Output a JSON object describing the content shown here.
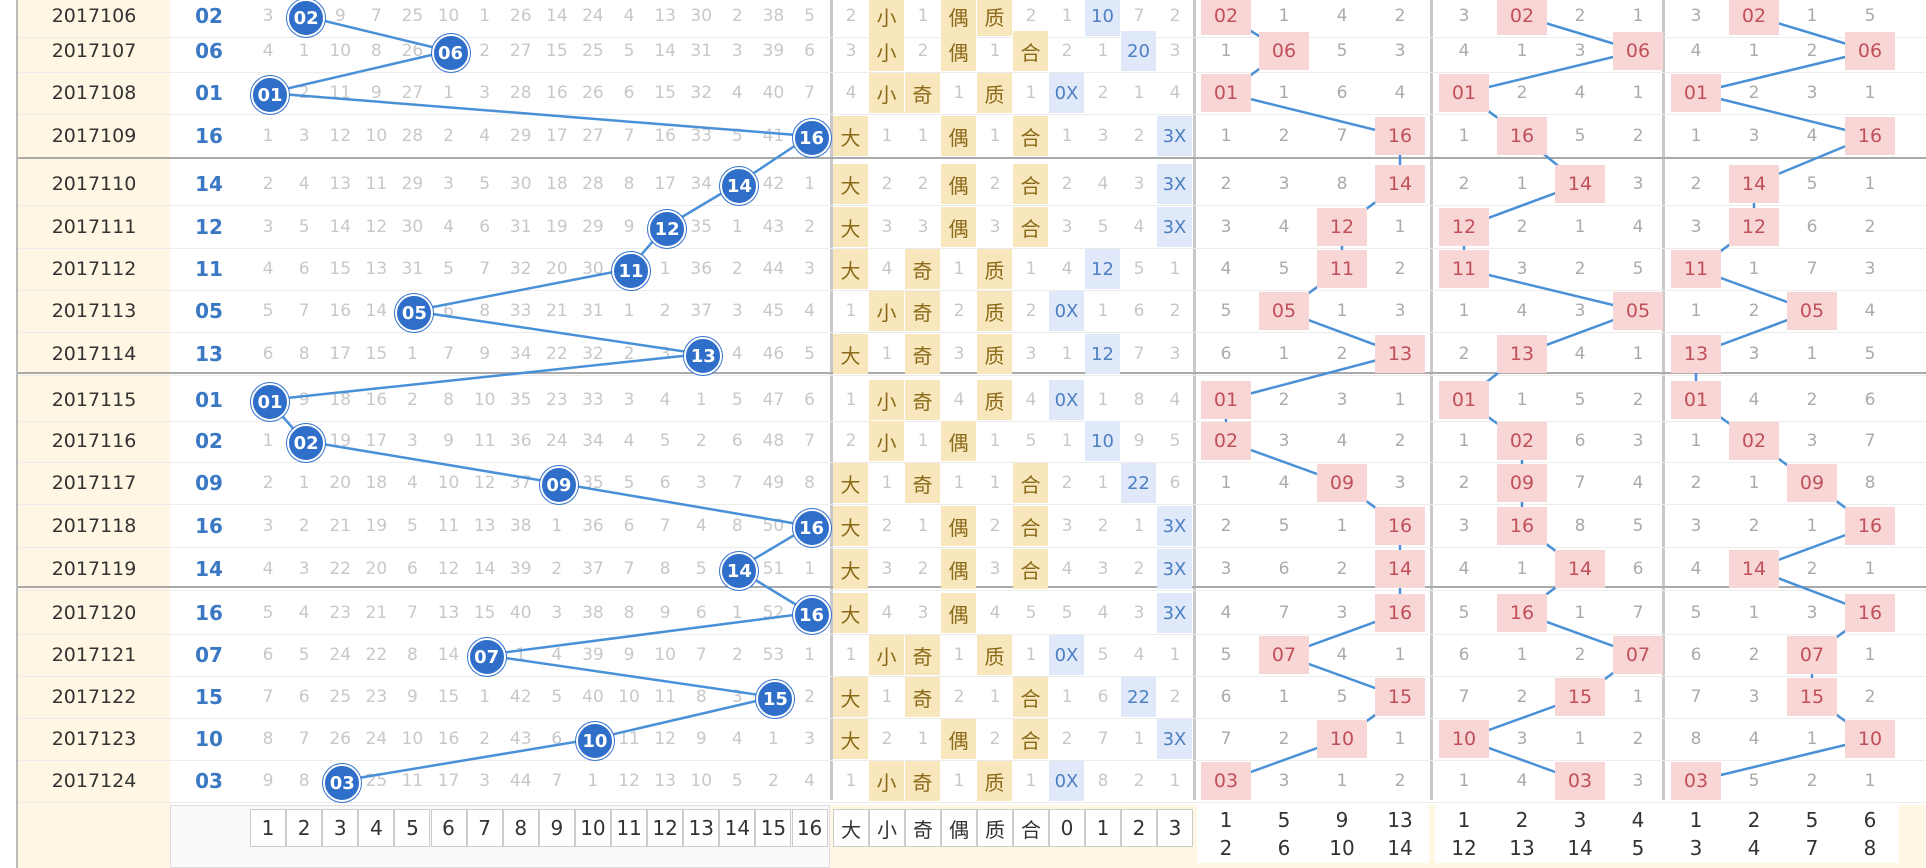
{
  "chart_data": {
    "type": "table",
    "issues": [
      "2017106",
      "2017107",
      "2017108",
      "2017109",
      "2017110",
      "2017111",
      "2017112",
      "2017113",
      "2017114",
      "2017115",
      "2017116",
      "2017117",
      "2017118",
      "2017119",
      "2017120",
      "2017121",
      "2017122",
      "2017123",
      "2017124"
    ],
    "numbers": [
      "02",
      "06",
      "01",
      "16",
      "14",
      "12",
      "11",
      "05",
      "13",
      "01",
      "02",
      "09",
      "16",
      "14",
      "16",
      "07",
      "15",
      "10",
      "03"
    ],
    "number_values": [
      2,
      6,
      1,
      16,
      14,
      12,
      11,
      5,
      13,
      1,
      2,
      9,
      16,
      14,
      16,
      7,
      15,
      10,
      3
    ],
    "omission_grid": [
      [
        "3",
        "02",
        "9",
        "7",
        "25",
        "10",
        "1",
        "26",
        "14",
        "24",
        "4",
        "13",
        "30",
        "2",
        "38",
        "5"
      ],
      [
        "4",
        "1",
        "10",
        "8",
        "26",
        "06",
        "2",
        "27",
        "15",
        "25",
        "5",
        "14",
        "31",
        "3",
        "39",
        "6"
      ],
      [
        "01",
        "2",
        "11",
        "9",
        "27",
        "1",
        "3",
        "28",
        "16",
        "26",
        "6",
        "15",
        "32",
        "4",
        "40",
        "7"
      ],
      [
        "1",
        "3",
        "12",
        "10",
        "28",
        "2",
        "4",
        "29",
        "17",
        "27",
        "7",
        "16",
        "33",
        "5",
        "41",
        "16"
      ],
      [
        "2",
        "4",
        "13",
        "11",
        "29",
        "3",
        "5",
        "30",
        "18",
        "28",
        "8",
        "17",
        "34",
        "14",
        "42",
        "1"
      ],
      [
        "3",
        "5",
        "14",
        "12",
        "30",
        "4",
        "6",
        "31",
        "19",
        "29",
        "9",
        "12",
        "35",
        "1",
        "43",
        "2"
      ],
      [
        "4",
        "6",
        "15",
        "13",
        "31",
        "5",
        "7",
        "32",
        "20",
        "30",
        "11",
        "1",
        "36",
        "2",
        "44",
        "3"
      ],
      [
        "5",
        "7",
        "16",
        "14",
        "05",
        "6",
        "8",
        "33",
        "21",
        "31",
        "1",
        "2",
        "37",
        "3",
        "45",
        "4"
      ],
      [
        "6",
        "8",
        "17",
        "15",
        "1",
        "7",
        "9",
        "34",
        "22",
        "32",
        "2",
        "3",
        "13",
        "4",
        "46",
        "5"
      ],
      [
        "01",
        "9",
        "18",
        "16",
        "2",
        "8",
        "10",
        "35",
        "23",
        "33",
        "3",
        "4",
        "1",
        "5",
        "47",
        "6"
      ],
      [
        "1",
        "02",
        "19",
        "17",
        "3",
        "9",
        "11",
        "36",
        "24",
        "34",
        "4",
        "5",
        "2",
        "6",
        "48",
        "7"
      ],
      [
        "2",
        "1",
        "20",
        "18",
        "4",
        "10",
        "12",
        "37",
        "09",
        "35",
        "5",
        "6",
        "3",
        "7",
        "49",
        "8"
      ],
      [
        "3",
        "2",
        "21",
        "19",
        "5",
        "11",
        "13",
        "38",
        "1",
        "36",
        "6",
        "7",
        "4",
        "8",
        "50",
        "16"
      ],
      [
        "4",
        "3",
        "22",
        "20",
        "6",
        "12",
        "14",
        "39",
        "2",
        "37",
        "7",
        "8",
        "5",
        "14",
        "51",
        "1"
      ],
      [
        "5",
        "4",
        "23",
        "21",
        "7",
        "13",
        "15",
        "40",
        "3",
        "38",
        "8",
        "9",
        "6",
        "1",
        "52",
        "16"
      ],
      [
        "6",
        "5",
        "24",
        "22",
        "8",
        "14",
        "07",
        "1",
        "4",
        "39",
        "9",
        "10",
        "7",
        "2",
        "53",
        "1"
      ],
      [
        "7",
        "6",
        "25",
        "23",
        "9",
        "15",
        "1",
        "42",
        "5",
        "40",
        "10",
        "11",
        "8",
        "3",
        "15",
        "2"
      ],
      [
        "8",
        "7",
        "26",
        "24",
        "10",
        "16",
        "2",
        "43",
        "6",
        "10",
        "11",
        "12",
        "9",
        "4",
        "1",
        "3"
      ],
      [
        "9",
        "8",
        "03",
        "25",
        "11",
        "17",
        "3",
        "44",
        "7",
        "1",
        "12",
        "13",
        "10",
        "5",
        "2",
        "4"
      ]
    ],
    "size_col": [
      "2",
      "3",
      "4",
      "大",
      "大",
      "大",
      "大",
      "1",
      "大",
      "1",
      "2",
      "大",
      "大",
      "大",
      "大",
      "1",
      "大",
      "大",
      "1"
    ],
    "small_col": [
      "小",
      "小",
      "小",
      "1",
      "2",
      "3",
      "4",
      "小",
      "1",
      "小",
      "小",
      "1",
      "2",
      "3",
      "4",
      "小",
      "1",
      "2",
      "小"
    ],
    "odd_col": [
      "1",
      "2",
      "奇",
      "1",
      "2",
      "3",
      "奇",
      "奇",
      "奇",
      "奇",
      "1",
      "奇",
      "1",
      "2",
      "3",
      "奇",
      "奇",
      "1",
      "奇"
    ],
    "even_col": [
      "偶",
      "偶",
      "1",
      "偶",
      "偶",
      "偶",
      "1",
      "2",
      "3",
      "4",
      "偶",
      "1",
      "偶",
      "偶",
      "偶",
      "1",
      "2",
      "偶",
      "1"
    ],
    "prime_col": [
      "质",
      "1",
      "质",
      "1",
      "2",
      "3",
      "质",
      "质",
      "质",
      "质",
      "1",
      "1",
      "2",
      "3",
      "4",
      "质",
      "1",
      "2",
      "质"
    ],
    "comp_col": [
      "2",
      "合",
      "1",
      "合",
      "合",
      "合",
      "1",
      "2",
      "3",
      "4",
      "5",
      "合",
      "合",
      "合",
      "5",
      "1",
      "合",
      "合",
      "1"
    ],
    "mod_cols": [
      [
        "1",
        "10",
        "7",
        "2"
      ],
      [
        "2",
        "1",
        "20",
        "3"
      ],
      [
        "0X",
        "2",
        "1",
        "4"
      ],
      [
        "1",
        "3",
        "2",
        "3X"
      ],
      [
        "2",
        "4",
        "3",
        "3X"
      ],
      [
        "3",
        "5",
        "4",
        "3X"
      ],
      [
        "4",
        "12",
        "5",
        "1"
      ],
      [
        "0X",
        "1",
        "6",
        "2"
      ],
      [
        "1",
        "12",
        "7",
        "3"
      ],
      [
        "0X",
        "1",
        "8",
        "4"
      ],
      [
        "1",
        "10",
        "9",
        "5"
      ],
      [
        "2",
        "1",
        "22",
        "6"
      ],
      [
        "3",
        "2",
        "1",
        "3X"
      ],
      [
        "4",
        "3",
        "2",
        "3X"
      ],
      [
        "5",
        "4",
        "3",
        "3X"
      ],
      [
        "0X",
        "5",
        "4",
        "1"
      ],
      [
        "1",
        "6",
        "22",
        "2"
      ],
      [
        "2",
        "7",
        "1",
        "3X"
      ],
      [
        "0X",
        "8",
        "2",
        "1"
      ]
    ],
    "group1": [
      [
        "02",
        "1",
        "4",
        "2"
      ],
      [
        "1",
        "06",
        "5",
        "3"
      ],
      [
        "01",
        "1",
        "6",
        "4"
      ],
      [
        "1",
        "2",
        "7",
        "16"
      ],
      [
        "2",
        "3",
        "8",
        "14"
      ],
      [
        "3",
        "4",
        "12",
        "1"
      ],
      [
        "4",
        "5",
        "11",
        "2"
      ],
      [
        "5",
        "05",
        "1",
        "3"
      ],
      [
        "6",
        "1",
        "2",
        "13"
      ],
      [
        "01",
        "2",
        "3",
        "1"
      ],
      [
        "02",
        "3",
        "4",
        "2"
      ],
      [
        "1",
        "4",
        "09",
        "3"
      ],
      [
        "2",
        "5",
        "1",
        "16"
      ],
      [
        "3",
        "6",
        "2",
        "14"
      ],
      [
        "4",
        "7",
        "3",
        "16"
      ],
      [
        "5",
        "07",
        "4",
        "1"
      ],
      [
        "6",
        "1",
        "5",
        "15"
      ],
      [
        "7",
        "2",
        "10",
        "1"
      ],
      [
        "03",
        "3",
        "1",
        "2"
      ]
    ],
    "group2": [
      [
        "3",
        "02",
        "2",
        "1"
      ],
      [
        "4",
        "1",
        "3",
        "06"
      ],
      [
        "01",
        "2",
        "4",
        "1"
      ],
      [
        "1",
        "16",
        "5",
        "2"
      ],
      [
        "2",
        "1",
        "14",
        "3"
      ],
      [
        "12",
        "2",
        "1",
        "4"
      ],
      [
        "11",
        "3",
        "2",
        "5"
      ],
      [
        "1",
        "4",
        "3",
        "05"
      ],
      [
        "2",
        "13",
        "4",
        "1"
      ],
      [
        "01",
        "1",
        "5",
        "2"
      ],
      [
        "1",
        "02",
        "6",
        "3"
      ],
      [
        "2",
        "09",
        "7",
        "4"
      ],
      [
        "3",
        "16",
        "8",
        "5"
      ],
      [
        "4",
        "1",
        "14",
        "6"
      ],
      [
        "5",
        "16",
        "1",
        "7"
      ],
      [
        "6",
        "1",
        "2",
        "07"
      ],
      [
        "7",
        "2",
        "15",
        "1"
      ],
      [
        "10",
        "3",
        "1",
        "2"
      ],
      [
        "1",
        "4",
        "03",
        "3"
      ]
    ],
    "group3": [
      [
        "3",
        "02",
        "1",
        "5"
      ],
      [
        "4",
        "1",
        "2",
        "06"
      ],
      [
        "01",
        "2",
        "3",
        "1"
      ],
      [
        "1",
        "3",
        "4",
        "16"
      ],
      [
        "2",
        "14",
        "5",
        "1"
      ],
      [
        "3",
        "12",
        "6",
        "2"
      ],
      [
        "11",
        "1",
        "7",
        "3"
      ],
      [
        "1",
        "2",
        "05",
        "4"
      ],
      [
        "13",
        "3",
        "1",
        "5"
      ],
      [
        "01",
        "4",
        "2",
        "6"
      ],
      [
        "1",
        "02",
        "3",
        "7"
      ],
      [
        "2",
        "1",
        "09",
        "8"
      ],
      [
        "3",
        "2",
        "1",
        "16"
      ],
      [
        "4",
        "14",
        "2",
        "1"
      ],
      [
        "5",
        "1",
        "3",
        "16"
      ],
      [
        "6",
        "2",
        "07",
        "1"
      ],
      [
        "7",
        "3",
        "15",
        "2"
      ],
      [
        "8",
        "4",
        "1",
        "10"
      ],
      [
        "03",
        "5",
        "2",
        "1"
      ]
    ],
    "footer_numbers": [
      "1",
      "2",
      "3",
      "4",
      "5",
      "6",
      "7",
      "8",
      "9",
      "10",
      "11",
      "12",
      "13",
      "14",
      "15",
      "16"
    ],
    "footer_tags": [
      "大",
      "小",
      "奇",
      "偶",
      "质",
      "合",
      "0",
      "1",
      "2",
      "3"
    ],
    "footer_group1": [
      [
        "1",
        "2"
      ],
      [
        "5",
        "6"
      ],
      [
        "9",
        "10"
      ],
      [
        "13",
        "14"
      ]
    ],
    "footer_group2": [
      [
        "1",
        "12"
      ],
      [
        "2",
        "13"
      ],
      [
        "3",
        "14"
      ],
      [
        "4",
        "5"
      ]
    ],
    "footer_group3": [
      [
        "1",
        "3"
      ],
      [
        "2",
        "4"
      ],
      [
        "5",
        "7"
      ],
      [
        "6",
        "8"
      ]
    ]
  }
}
